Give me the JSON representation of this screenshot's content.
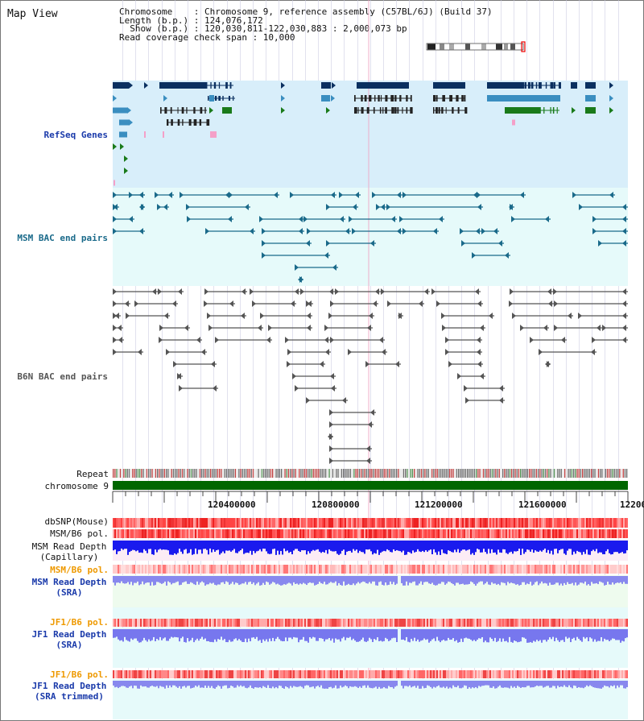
{
  "title": "Map View",
  "info": {
    "line1": "Chromosome    : Chromosome 9, reference assembly (C57BL/6J) (Build 37)",
    "line2": "Length (b.p.) : 124,076,172",
    "line3": "  Show (b.p.) : 120,030,811-122,030,883 : 2,000,073 bp",
    "line4": "Read coverage check span : 10,000"
  },
  "tracks": {
    "refseq": "RefSeq Genes",
    "msm_bac": "MSM BAC end pairs",
    "b6n_bac": "B6N BAC end pairs",
    "repeat": "Repeat",
    "chrom": "chromosome 9",
    "dbsnp": "dbSNP(Mouse)",
    "msm_pol": "MSM/B6 pol.",
    "msm_depth_cap_1": "MSM Read Depth",
    "msm_depth_cap_2": "(Capillary)",
    "msm_pol2": "MSM/B6 pol.",
    "msm_depth_sra_1": "MSM Read Depth",
    "msm_depth_sra_2": "(SRA)",
    "jf1_pol": "JF1/B6 pol.",
    "jf1_depth_sra_1": "JF1 Read Depth",
    "jf1_depth_sra_2": "(SRA)",
    "jf1_pol2": "JF1/B6 pol.",
    "jf1_depth_tr_1": "JF1 Read Depth",
    "jf1_depth_tr_2": "(SRA trimmed)"
  },
  "ruler": {
    "t1": "120400000",
    "t2": "120800000",
    "t3": "121200000",
    "t4": "121600000",
    "t5": "12200"
  },
  "colors": {
    "refseq_bg": "#d8eefa",
    "msm_bg": "#e6fafa",
    "refseq_dark": "#0b3060",
    "refseq_mid": "#3a8ec0",
    "green": "#1a7a1a",
    "pink": "#f4a0c8",
    "msm_line": "#1a6a8a",
    "b6n_line": "#555555",
    "snp": "#ee3333",
    "depth": "#1a1aee",
    "depth_light": "#8888ee",
    "label_blue": "#1a3aaa",
    "label_orange": "#ee9900",
    "label_teal": "#1a6a8a"
  }
}
